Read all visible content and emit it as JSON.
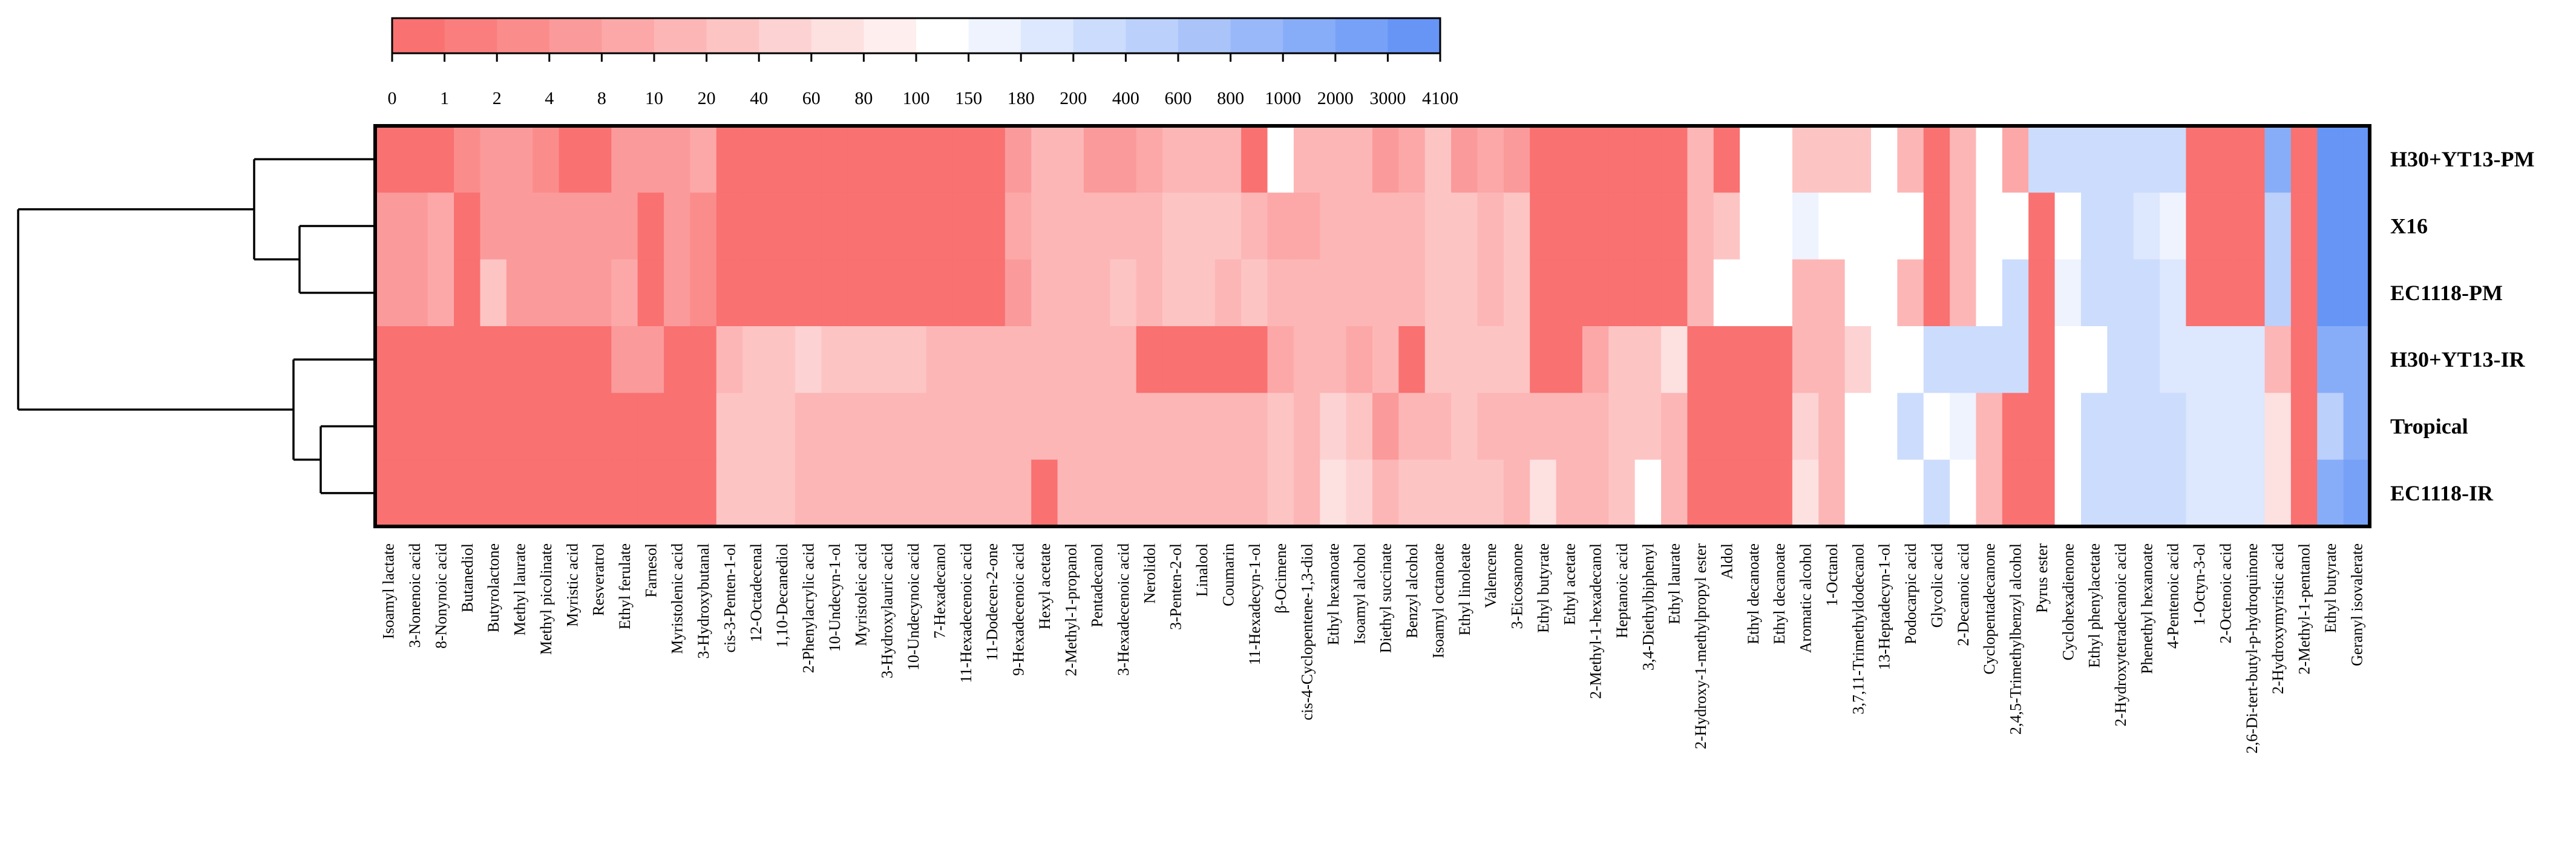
{
  "chart_data": {
    "type": "heatmap",
    "title": "",
    "color_scale": {
      "tick_labels": [
        "0",
        "1",
        "2",
        "4",
        "8",
        "10",
        "20",
        "40",
        "60",
        "80",
        "100",
        "150",
        "180",
        "200",
        "400",
        "600",
        "800",
        "1000",
        "2000",
        "3000",
        "4100"
      ],
      "colors": [
        "#f97171",
        "#fa7e7e",
        "#fb8c8c",
        "#fb9a9a",
        "#fca8a8",
        "#fcb6b6",
        "#fdc4c4",
        "#fdd2d2",
        "#fde0e0",
        "#feeeee",
        "#ffffff",
        "#eef3fe",
        "#dde7fd",
        "#ccdcfc",
        "#bbd0fb",
        "#aac4fa",
        "#99b8f9",
        "#88adf8",
        "#77a1f7",
        "#6695f6"
      ]
    },
    "rows": [
      "H30+YT13-PM",
      "X16",
      "EC1118-PM",
      "H30+YT13-IR",
      "Tropical",
      "EC1118-IR"
    ],
    "columns": [
      "Isoamyl lactate",
      "3-Nonenoic acid",
      "8-Nonynoic acid",
      "Butanediol",
      "Butyrolactone",
      "Methyl laurate",
      "Methyl picolinate",
      "Myristic acid",
      "Resveratrol",
      "Ethyl ferulate",
      "Farnesol",
      "Myristolenic acid",
      "3-Hydroxybutanal",
      "cis-3-Penten-1-ol",
      "12-Octadecenal",
      "1,10-Decanediol",
      "2-Phenylacrylic acid",
      "10-Undecyn-1-ol",
      "Myristoleic acid",
      "3-Hydroxylauric acid",
      "10-Undecynoic acid",
      "7-Hexadecanol",
      "11-Hexadecenoic acid",
      "11-Dodecen-2-one",
      "9-Hexadecenoic acid",
      "Hexyl acetate",
      "2-Methyl-1-propanol",
      "Pentadecanol",
      "3-Hexadecenoic acid",
      "Nerolidol",
      "3-Penten-2-ol",
      "Linalool",
      "Coumarin",
      "11-Hexadecyn-1-ol",
      "β-Ocimene",
      "cis-4-Cyclopentene-1,3-diol",
      "Ethyl hexanoate",
      "Isoamyl alcohol",
      "Diethyl succinate",
      "Benzyl alcohol",
      "Isoamyl octanoate",
      "Ethyl linoleate",
      "Valencene",
      "3-Eicosanone",
      "Ethyl butyrate",
      "Ethyl acetate",
      "2-Methyl-1-hexadecanol",
      "Heptanoic acid",
      "3,4-Diethylbiphenyl",
      "Ethyl laurate",
      "2-Hydroxy-1-methylpropyl ester",
      "Aldol",
      "Ethyl decanoate",
      "Ethyl decanoate",
      "Aromatic alcohol",
      "1-Octanol",
      "3,7,11-Trimethyldodecanol",
      "13-Heptadecyn-1-ol",
      "Podocarpic acid",
      "Glycolic acid",
      "2-Decanoic acid",
      "Cyclopentadecanone",
      "2,4,5-Trimethylbenzyl alcohol",
      "Pyrus ester",
      "Cyclohexadienone",
      "Ethyl phenylacetate",
      "2-Hydroxytetradecanoic acid",
      "Phenethyl hexanoate",
      "4-Pentenoic acid",
      "1-Octyn-3-ol",
      "2-Octenoic acid",
      "2,6-Di-tert-butyl-p-hydroquinone",
      "2-Hydroxymyristic acid",
      "2-Methyl-1-pentanol",
      "Ethyl butyrate",
      "Geranyl isovalerate"
    ],
    "values": [
      [
        0,
        0,
        0,
        3,
        6,
        4,
        3,
        0,
        0,
        4,
        4,
        6,
        8,
        0,
        0,
        0,
        0,
        0,
        0,
        0,
        0,
        0,
        0,
        0,
        7,
        10,
        10,
        6,
        5,
        9,
        12,
        14,
        15,
        0,
        100,
        12,
        12,
        10,
        4,
        8,
        20,
        7,
        8,
        5,
        0,
        0,
        0,
        0,
        0,
        0,
        11,
        0,
        100,
        100,
        25,
        25,
        25,
        100,
        16,
        0,
        14,
        100,
        9,
        300,
        300,
        300,
        300,
        300,
        300,
        0,
        0,
        0,
        1000,
        0,
        3000,
        3000
      ],
      [
        7,
        7,
        8,
        0,
        7,
        7,
        7,
        7,
        7,
        4,
        0,
        7,
        2,
        0,
        0,
        0,
        0,
        0,
        0,
        0,
        0,
        0,
        0,
        0,
        9,
        12,
        11,
        13,
        15,
        13,
        20,
        20,
        20,
        14,
        8,
        8,
        12,
        12,
        12,
        10,
        20,
        25,
        14,
        20,
        0,
        0,
        0,
        0,
        0,
        0,
        14,
        35,
        100,
        100,
        150,
        100,
        100,
        100,
        100,
        0,
        14,
        100,
        100,
        0,
        100,
        200,
        250,
        180,
        150,
        0,
        0,
        0,
        500,
        0,
        3000,
        3000
      ],
      [
        6,
        6,
        8,
        0,
        25,
        6,
        6,
        6,
        6,
        8,
        0,
        6,
        2,
        0,
        0,
        0,
        0,
        0,
        0,
        0,
        0,
        0,
        0,
        0,
        7,
        14,
        13,
        17,
        24,
        13,
        30,
        30,
        19,
        28,
        11,
        11,
        13,
        13,
        16,
        13,
        30,
        20,
        18,
        30,
        0,
        0,
        0,
        0,
        0,
        0,
        14,
        100,
        100,
        100,
        12,
        12,
        100,
        100,
        16,
        0,
        16,
        100,
        200,
        0,
        150,
        200,
        250,
        200,
        180,
        0,
        0,
        0,
        400,
        0,
        3000,
        3000
      ],
      [
        0,
        0,
        0,
        0,
        0,
        0,
        0,
        0,
        0,
        6,
        6,
        0,
        0,
        18,
        20,
        30,
        45,
        20,
        20,
        20,
        20,
        18,
        18,
        14,
        14,
        14,
        10,
        10,
        10,
        0,
        0,
        0,
        0,
        0,
        8,
        11,
        10,
        8,
        10,
        0,
        25,
        25,
        22,
        22,
        0,
        0,
        8,
        25,
        25,
        70,
        0,
        0,
        0,
        0,
        11,
        10,
        50,
        100,
        100,
        200,
        200,
        200,
        200,
        0,
        100,
        100,
        300,
        300,
        180,
        180,
        180,
        180,
        10,
        0,
        1000,
        1000
      ],
      [
        0,
        0,
        0,
        0,
        0,
        0,
        0,
        0,
        0,
        0,
        0,
        0,
        0,
        25,
        25,
        25,
        15,
        15,
        15,
        13,
        13,
        13,
        13,
        12,
        12,
        10,
        10,
        10,
        10,
        18,
        18,
        18,
        18,
        18,
        22,
        18,
        40,
        30,
        5,
        18,
        18,
        22,
        18,
        16,
        16,
        16,
        18,
        25,
        22,
        14,
        0,
        0,
        0,
        0,
        40,
        12,
        100,
        100,
        200,
        100,
        150,
        14,
        0,
        0,
        100,
        200,
        200,
        200,
        200,
        180,
        180,
        180,
        60,
        0,
        400,
        1000
      ],
      [
        0,
        0,
        0,
        0,
        0,
        0,
        0,
        0,
        0,
        0,
        0,
        0,
        0,
        22,
        22,
        22,
        14,
        15,
        15,
        12,
        12,
        10,
        10,
        10,
        12,
        0,
        15,
        15,
        15,
        18,
        18,
        18,
        18,
        18,
        20,
        18,
        60,
        55,
        12,
        25,
        35,
        22,
        22,
        16,
        60,
        16,
        16,
        30,
        100,
        12,
        0,
        0,
        0,
        0,
        60,
        14,
        100,
        100,
        100,
        200,
        100,
        15,
        0,
        0,
        100,
        200,
        200,
        200,
        200,
        180,
        180,
        180,
        60,
        0,
        1000,
        2000
      ]
    ]
  }
}
